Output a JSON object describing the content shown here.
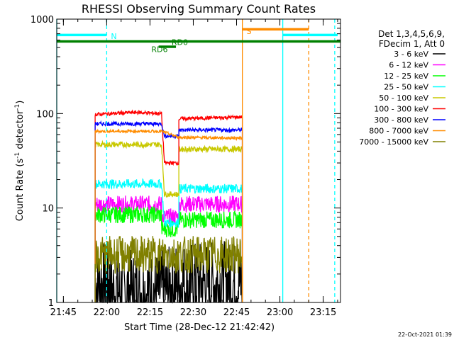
{
  "chart_data": {
    "type": "line",
    "title": "RHESSI Observing Summary Count Rates",
    "xlabel": "Start Time (28-Dec-12 21:42:42)",
    "ylabel": "Count Rate (s",
    "ylabel_sup1": "-1",
    "ylabel_mid": " detector",
    "ylabel_sup2": "-1",
    "ylabel_end": ")",
    "y_scale": "log",
    "ylim": [
      1,
      1000
    ],
    "xlim": [
      "21:42:42",
      "23:21:00"
    ],
    "y_ticks": [
      "1",
      "10",
      "100",
      "1000"
    ],
    "x_ticks": [
      "21:45",
      "22:00",
      "22:15",
      "22:30",
      "22:45",
      "23:00",
      "23:15"
    ],
    "legend": {
      "placement": "right",
      "header1": "Det 1,3,4,5,6,9,",
      "header2": "FDecim 1, Att 0",
      "entries": [
        {
          "label": "3 - 6 keV",
          "color": "#000000"
        },
        {
          "label": "6 - 12 keV",
          "color": "#ff00ff"
        },
        {
          "label": "12 - 25 keV",
          "color": "#00ff00"
        },
        {
          "label": "25 - 50 keV",
          "color": "#00ffff"
        },
        {
          "label": "50 - 100 keV",
          "color": "#c8c800"
        },
        {
          "label": "100 - 300 keV",
          "color": "#ff0000"
        },
        {
          "label": "300 - 800 keV",
          "color": "#0000ff"
        },
        {
          "label": "800 - 7000 keV",
          "color": "#ff8c00"
        },
        {
          "label": "7000 - 15000 keV",
          "color": "#808000"
        }
      ]
    },
    "series": [
      {
        "name": "3 - 6 keV",
        "color": "#000000",
        "x": [
          "21:56",
          "22:01",
          "22:01",
          "22:20",
          "22:24",
          "22:47"
        ],
        "y": [
          1.6,
          1.6,
          1.3,
          1.3,
          1.6,
          1.6
        ]
      },
      {
        "name": "6 - 12 keV",
        "color": "#ff00ff",
        "x": [
          "21:56",
          "22:19",
          "22:19",
          "22:25",
          "22:25",
          "22:47"
        ],
        "y": [
          11,
          11,
          8,
          8,
          11,
          11
        ]
      },
      {
        "name": "12 - 25 keV",
        "color": "#00ff00",
        "x": [
          "21:56",
          "22:19",
          "22:19",
          "22:25",
          "22:25",
          "22:47"
        ],
        "y": [
          8.5,
          8.5,
          6,
          6,
          7.5,
          7.5
        ]
      },
      {
        "name": "25 - 50 keV",
        "color": "#00ffff",
        "x": [
          "21:56",
          "22:19",
          "22:20",
          "22:25",
          "22:25",
          "22:47"
        ],
        "y": [
          18,
          18,
          7,
          7,
          16,
          16
        ]
      },
      {
        "name": "50 - 100 keV",
        "color": "#c8c800",
        "x": [
          "21:56",
          "22:19",
          "22:20",
          "22:25",
          "22:25",
          "22:47"
        ],
        "y": [
          47,
          47,
          14,
          14,
          42,
          42
        ]
      },
      {
        "name": "100 - 300 keV",
        "color": "#ff0000",
        "x": [
          "21:56",
          "22:10",
          "22:19",
          "22:20",
          "22:25",
          "22:25",
          "22:47"
        ],
        "y": [
          98,
          103,
          100,
          30,
          30,
          88,
          92
        ]
      },
      {
        "name": "300 - 800 keV",
        "color": "#0000ff",
        "x": [
          "21:56",
          "22:19",
          "22:20",
          "22:25",
          "22:25",
          "22:47"
        ],
        "y": [
          78,
          78,
          58,
          58,
          67,
          67
        ]
      },
      {
        "name": "800 - 7000 keV",
        "color": "#ff8c00",
        "x": [
          "21:56",
          "22:19",
          "22:25",
          "22:47"
        ],
        "y": [
          65,
          65,
          56,
          55
        ]
      },
      {
        "name": "7000 - 15000 keV",
        "color": "#808000",
        "x": [
          "21:56",
          "22:47"
        ],
        "y": [
          3.2,
          3.2
        ]
      }
    ],
    "annotations": [
      {
        "text": "N",
        "color": "#00ffff",
        "x": "22:00",
        "y": 670
      },
      {
        "text": "S",
        "color": "#ff8c00",
        "x": "22:47",
        "y": 760
      },
      {
        "text": "RD0",
        "color": "#008000",
        "x": "22:21",
        "y": 580
      },
      {
        "text": "RD6",
        "color": "#008000",
        "x": "22:14",
        "y": 490
      }
    ],
    "bars": [
      {
        "name": "N",
        "color": "#00ffff",
        "x": [
          [
            "21:42:42",
            "22:00"
          ],
          [
            "23:01",
            "23:20"
          ]
        ],
        "y": 680
      },
      {
        "name": "S",
        "color": "#ff8c00",
        "x": [
          [
            "22:47",
            "23:10"
          ]
        ],
        "y": 780
      },
      {
        "name": "RD0",
        "color": "#008000",
        "x": [
          [
            "21:42:42",
            "23:21:00"
          ]
        ],
        "y": 580
      },
      {
        "name": "RD6",
        "color": "#008000",
        "x": [
          [
            "22:18",
            "22:24"
          ]
        ],
        "y": 510
      }
    ],
    "vlines": [
      {
        "x": "21:42:42",
        "color": "#00ffff",
        "dashed": false
      },
      {
        "x": "22:00",
        "color": "#00ffff",
        "dashed": true
      },
      {
        "x": "22:47",
        "color": "#ff8c00",
        "dashed": false
      },
      {
        "x": "23:01",
        "color": "#00ffff",
        "dashed": false
      },
      {
        "x": "23:10",
        "color": "#ff8c00",
        "dashed": true
      },
      {
        "x": "23:19",
        "color": "#00ffff",
        "dashed": true
      }
    ]
  },
  "footer": {
    "date": "22-Oct-2021 01:39"
  }
}
